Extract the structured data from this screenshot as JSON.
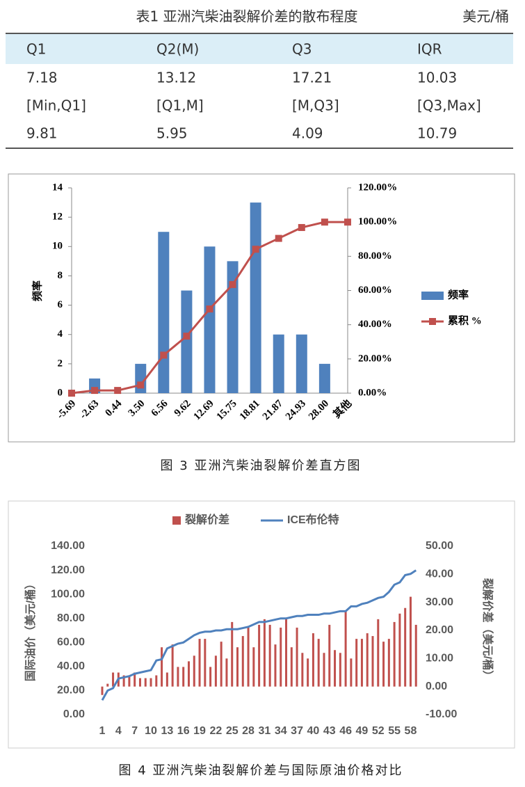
{
  "table": {
    "title": "表1 亚洲汽柴油裂解价差的散布程度",
    "unit": "美元/桶",
    "header": [
      "Q1",
      "Q2(M)",
      "Q3",
      "IQR"
    ],
    "rows": [
      [
        "7.18",
        "13.12",
        "17.21",
        "10.03"
      ],
      [
        "[Min,Q1]",
        "[Q1,M]",
        "[M,Q3]",
        "[Q3,Max]"
      ],
      [
        "9.81",
        "5.95",
        "4.09",
        "10.79"
      ]
    ]
  },
  "chart_data": [
    {
      "type": "bar",
      "caption": "图 3 亚洲汽柴油裂解价差直方图",
      "ylabel": "频率",
      "categories": [
        "-5.69",
        "-2.63",
        "0.44",
        "3.50",
        "6.56",
        "9.62",
        "12.69",
        "15.75",
        "18.81",
        "21.87",
        "24.93",
        "28.00",
        "其他"
      ],
      "series": [
        {
          "name": "频率",
          "color": "#4f81bd",
          "values": [
            0,
            1,
            0,
            2,
            11,
            7,
            10,
            9,
            13,
            4,
            4,
            2,
            0
          ]
        },
        {
          "name": "累积 %",
          "color": "#c0504d",
          "type": "line",
          "axis": "y2",
          "values": [
            0,
            1.59,
            1.59,
            4.76,
            22.22,
            33.33,
            49.21,
            63.49,
            84.13,
            90.48,
            96.83,
            100,
            100
          ]
        }
      ],
      "ylim": [
        0,
        14
      ],
      "yticks": [
        0,
        2,
        4,
        6,
        8,
        10,
        12,
        14
      ],
      "y2lim": [
        0,
        120
      ],
      "y2ticks": [
        {
          "value": 0,
          "label": "0.00%"
        },
        {
          "value": 20,
          "label": "20.00%"
        },
        {
          "value": 40,
          "label": "40.00%"
        },
        {
          "value": 60,
          "label": "60.00%"
        },
        {
          "value": 80,
          "label": "80.00%"
        },
        {
          "value": 100,
          "label": "100.00%"
        },
        {
          "value": 120,
          "label": "120.00%"
        }
      ],
      "legend": "right"
    },
    {
      "type": "bar",
      "caption": "图 4 亚洲汽柴油裂解价差与国际原油价格对比",
      "ylabel": "国际油价（美元/桶）",
      "y2label": "裂解价差（美元/桶）",
      "categories": [
        1,
        null,
        null,
        4,
        null,
        null,
        7,
        null,
        null,
        10,
        null,
        null,
        13,
        null,
        null,
        16,
        null,
        null,
        19,
        null,
        null,
        22,
        null,
        null,
        25,
        null,
        null,
        28,
        null,
        null,
        31,
        null,
        null,
        34,
        null,
        null,
        37,
        null,
        null,
        40,
        null,
        null,
        43,
        null,
        null,
        46,
        null,
        null,
        49,
        null,
        null,
        52,
        null,
        null,
        55,
        null,
        null,
        58,
        null
      ],
      "series": [
        {
          "name": "裂解价差",
          "color": "#c0504d",
          "axis": "y2",
          "values": [
            -3,
            1,
            5,
            5,
            4,
            4,
            5,
            3,
            3,
            3,
            4,
            14,
            5,
            15,
            7,
            7,
            9,
            11,
            17,
            17,
            7,
            11,
            16,
            10,
            23,
            14,
            18,
            21,
            14,
            22,
            24,
            22,
            15,
            21,
            24,
            14,
            21,
            12,
            10,
            19,
            17,
            12,
            22,
            13,
            12,
            27,
            10,
            17,
            17,
            19,
            18,
            24,
            16,
            17,
            23,
            26,
            28,
            32,
            22
          ]
        },
        {
          "name": "ICE布伦特",
          "color": "#4f81bd",
          "type": "line",
          "values": [
            12,
            20,
            22,
            30,
            31,
            32,
            34,
            35,
            36,
            37,
            45,
            46,
            55,
            57,
            59,
            60,
            63,
            66,
            68,
            69,
            69,
            70,
            70,
            71,
            71,
            71,
            72,
            73,
            75,
            77,
            77,
            78,
            79,
            80,
            80,
            81,
            82,
            82,
            83,
            83,
            83,
            84,
            84,
            85,
            86,
            86,
            90,
            90,
            92,
            93,
            95,
            97,
            98,
            102,
            108,
            110,
            116,
            117,
            120
          ]
        }
      ],
      "ylim": [
        0,
        140
      ],
      "yticks": [
        {
          "value": 0,
          "label": "0.00"
        },
        {
          "value": 20,
          "label": "20.00"
        },
        {
          "value": 40,
          "label": "40.00"
        },
        {
          "value": 60,
          "label": "60.00"
        },
        {
          "value": 80,
          "label": "80.00"
        },
        {
          "value": 100,
          "label": "100.00"
        },
        {
          "value": 120,
          "label": "120.00"
        },
        {
          "value": 140,
          "label": "140.00"
        }
      ],
      "y2lim": [
        -10,
        50
      ],
      "y2ticks": [
        {
          "value": -10,
          "label": "-10.00"
        },
        {
          "value": 0,
          "label": "0.00"
        },
        {
          "value": 10,
          "label": "10.00"
        },
        {
          "value": 20,
          "label": "20.00"
        },
        {
          "value": 30,
          "label": "30.00"
        },
        {
          "value": 40,
          "label": "40.00"
        },
        {
          "value": 50,
          "label": "50.00"
        }
      ],
      "legend": "top"
    }
  ]
}
